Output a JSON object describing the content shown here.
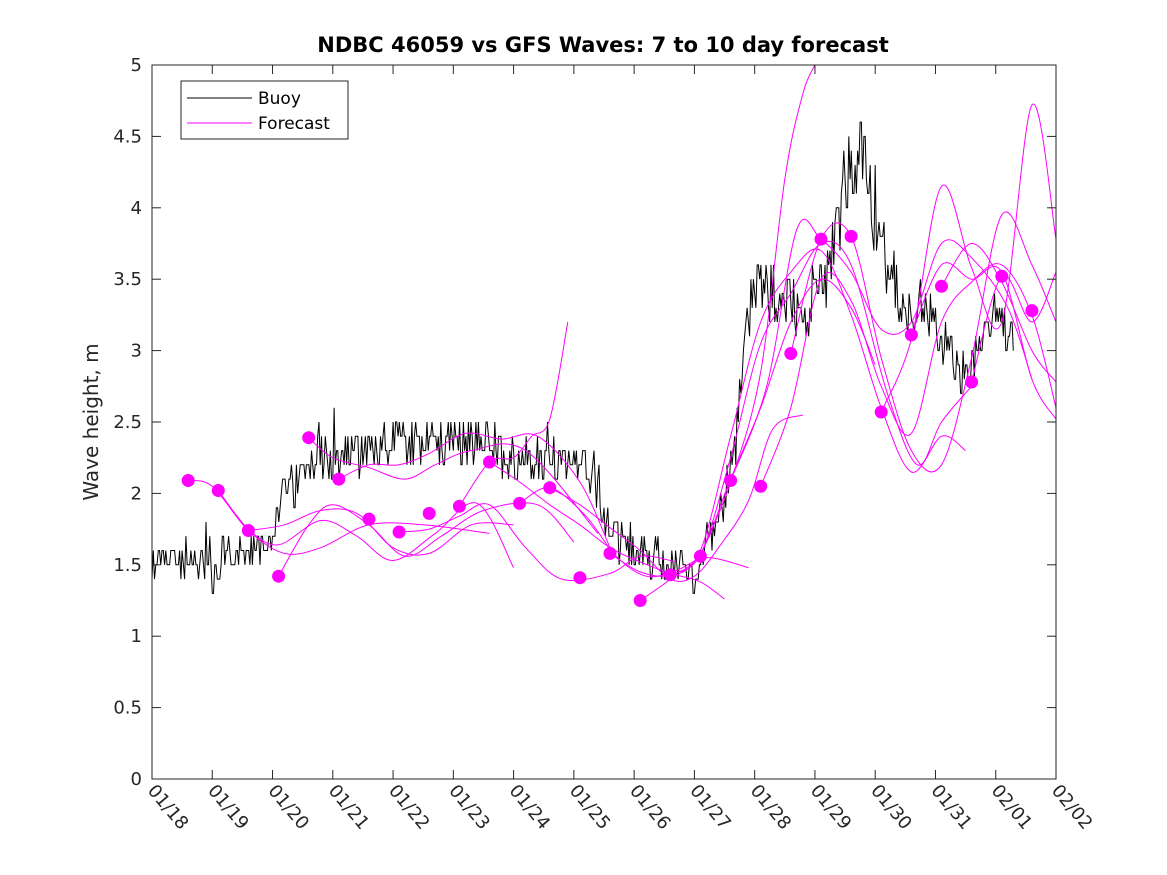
{
  "chart_data": {
    "type": "line",
    "title": "NDBC 46059 vs GFS Waves: 7 to 10 day forecast",
    "xlabel": "",
    "ylabel": "Wave height, m",
    "ylim": [
      0,
      5
    ],
    "xlim": [
      0,
      15
    ],
    "x_ticks": [
      {
        "x": 0,
        "label": "01/18"
      },
      {
        "x": 1,
        "label": "01/19"
      },
      {
        "x": 2,
        "label": "01/20"
      },
      {
        "x": 3,
        "label": "01/21"
      },
      {
        "x": 4,
        "label": "01/22"
      },
      {
        "x": 5,
        "label": "01/23"
      },
      {
        "x": 6,
        "label": "01/24"
      },
      {
        "x": 7,
        "label": "01/25"
      },
      {
        "x": 8,
        "label": "01/26"
      },
      {
        "x": 9,
        "label": "01/27"
      },
      {
        "x": 10,
        "label": "01/28"
      },
      {
        "x": 11,
        "label": "01/29"
      },
      {
        "x": 12,
        "label": "01/30"
      },
      {
        "x": 13,
        "label": "01/31"
      },
      {
        "x": 14,
        "label": "02/01"
      },
      {
        "x": 15,
        "label": "02/02"
      }
    ],
    "y_ticks": [
      {
        "y": 0,
        "label": "0"
      },
      {
        "y": 0.5,
        "label": "0.5"
      },
      {
        "y": 1,
        "label": "1"
      },
      {
        "y": 1.5,
        "label": "1.5"
      },
      {
        "y": 2,
        "label": "2"
      },
      {
        "y": 2.5,
        "label": "2.5"
      },
      {
        "y": 3,
        "label": "3"
      },
      {
        "y": 3.5,
        "label": "3.5"
      },
      {
        "y": 4,
        "label": "4"
      },
      {
        "y": 4.5,
        "label": "4.5"
      },
      {
        "y": 5,
        "label": "5"
      }
    ],
    "legend": {
      "position": "top-left",
      "entries": [
        {
          "label": "Buoy",
          "color": "#000000"
        },
        {
          "label": "Forecast",
          "color": "#ff00ff"
        }
      ]
    },
    "series": [
      {
        "name": "Buoy",
        "color": "#000000",
        "points": [
          [
            0,
            1.5
          ],
          [
            0.5,
            1.55
          ],
          [
            0.85,
            1.5
          ],
          [
            1.0,
            1.45
          ],
          [
            1.2,
            1.55
          ],
          [
            1.5,
            1.6
          ],
          [
            1.8,
            1.6
          ],
          [
            2.0,
            1.7
          ],
          [
            2.2,
            2.0
          ],
          [
            2.5,
            2.1
          ],
          [
            2.75,
            2.3
          ],
          [
            3.0,
            2.2
          ],
          [
            3.3,
            2.3
          ],
          [
            3.6,
            2.3
          ],
          [
            4.0,
            2.35
          ],
          [
            4.5,
            2.4
          ],
          [
            5.0,
            2.35
          ],
          [
            5.5,
            2.35
          ],
          [
            6.0,
            2.25
          ],
          [
            6.5,
            2.25
          ],
          [
            7.0,
            2.2
          ],
          [
            7.3,
            2.2
          ],
          [
            7.45,
            1.9
          ],
          [
            7.6,
            1.75
          ],
          [
            8.0,
            1.6
          ],
          [
            8.4,
            1.55
          ],
          [
            8.7,
            1.5
          ],
          [
            9.0,
            1.45
          ],
          [
            9.3,
            1.7
          ],
          [
            9.5,
            1.95
          ],
          [
            9.7,
            2.4
          ],
          [
            9.85,
            3.1
          ],
          [
            10.0,
            3.4
          ],
          [
            10.3,
            3.45
          ],
          [
            10.6,
            3.3
          ],
          [
            10.9,
            3.25
          ],
          [
            11.2,
            3.5
          ],
          [
            11.4,
            3.9
          ],
          [
            11.6,
            4.3
          ],
          [
            11.8,
            4.4
          ],
          [
            12.0,
            3.9
          ],
          [
            12.2,
            3.6
          ],
          [
            12.4,
            3.3
          ],
          [
            12.6,
            3.3
          ],
          [
            12.8,
            3.35
          ],
          [
            13.0,
            3.2
          ],
          [
            13.2,
            3.0
          ],
          [
            13.4,
            2.85
          ],
          [
            13.6,
            2.9
          ],
          [
            13.8,
            3.0
          ],
          [
            14.0,
            3.3
          ],
          [
            14.2,
            3.1
          ],
          [
            14.3,
            3.1
          ]
        ]
      }
    ],
    "forecast_runs": [
      [
        [
          0.6,
          2.09
        ],
        [
          1.0,
          2.05
        ],
        [
          1.6,
          1.74
        ],
        [
          2.2,
          1.58
        ],
        [
          2.8,
          1.62
        ],
        [
          3.6,
          1.78
        ],
        [
          4.5,
          1.78
        ],
        [
          5.6,
          1.72
        ]
      ],
      [
        [
          1.1,
          2.02
        ],
        [
          1.6,
          1.75
        ],
        [
          2.1,
          1.64
        ],
        [
          2.8,
          1.81
        ],
        [
          3.4,
          1.7
        ],
        [
          4.0,
          1.53
        ],
        [
          4.7,
          1.72
        ],
        [
          5.4,
          1.93
        ],
        [
          6.0,
          1.48
        ]
      ],
      [
        [
          1.6,
          1.74
        ],
        [
          2.2,
          1.78
        ],
        [
          2.8,
          1.88
        ],
        [
          3.4,
          1.86
        ],
        [
          4.0,
          1.62
        ],
        [
          4.6,
          1.58
        ],
        [
          5.3,
          1.78
        ],
        [
          6.0,
          1.78
        ]
      ],
      [
        [
          2.1,
          1.42
        ],
        [
          2.6,
          1.78
        ],
        [
          3.0,
          1.92
        ],
        [
          3.6,
          1.78
        ],
        [
          4.2,
          1.56
        ],
        [
          4.8,
          1.7
        ],
        [
          5.5,
          1.88
        ],
        [
          6.4,
          1.92
        ],
        [
          7.0,
          1.66
        ]
      ],
      [
        [
          2.6,
          2.39
        ],
        [
          3.0,
          2.25
        ],
        [
          3.6,
          2.18
        ],
        [
          4.2,
          2.1
        ],
        [
          4.7,
          2.2
        ],
        [
          5.3,
          2.3
        ],
        [
          6.2,
          2.3
        ],
        [
          7.4,
          1.72
        ]
      ],
      [
        [
          3.1,
          2.1
        ],
        [
          3.6,
          2.2
        ],
        [
          4.1,
          2.2
        ],
        [
          4.6,
          2.28
        ],
        [
          5.2,
          2.42
        ],
        [
          5.8,
          2.38
        ],
        [
          6.4,
          2.4
        ],
        [
          7.1,
          2.08
        ],
        [
          7.6,
          1.62
        ]
      ],
      [
        [
          4.1,
          1.73
        ],
        [
          4.6,
          1.75
        ],
        [
          5.1,
          1.84
        ],
        [
          5.6,
          1.92
        ],
        [
          6.2,
          1.62
        ],
        [
          6.8,
          1.4
        ],
        [
          7.6,
          1.44
        ],
        [
          8.1,
          1.56
        ],
        [
          8.7,
          1.52
        ]
      ],
      [
        [
          5.1,
          1.91
        ],
        [
          5.6,
          2.22
        ],
        [
          6.0,
          2.25
        ],
        [
          6.3,
          2.4
        ],
        [
          6.6,
          2.52
        ],
        [
          6.9,
          3.2
        ]
      ],
      [
        [
          5.6,
          2.22
        ],
        [
          6.1,
          2.08
        ],
        [
          6.6,
          1.92
        ],
        [
          7.1,
          1.78
        ],
        [
          7.6,
          1.62
        ],
        [
          8.1,
          1.52
        ],
        [
          8.6,
          1.44
        ],
        [
          9.1,
          1.38
        ],
        [
          9.5,
          1.26
        ]
      ],
      [
        [
          6.1,
          1.93
        ],
        [
          6.6,
          2.04
        ],
        [
          7.2,
          1.84
        ],
        [
          7.7,
          1.56
        ],
        [
          8.2,
          1.42
        ],
        [
          8.7,
          1.46
        ],
        [
          9.2,
          1.55
        ],
        [
          9.9,
          1.48
        ]
      ],
      [
        [
          6.6,
          2.04
        ],
        [
          7.1,
          1.92
        ],
        [
          7.6,
          1.76
        ],
        [
          8.1,
          1.6
        ],
        [
          8.6,
          1.4
        ],
        [
          9.0,
          1.42
        ],
        [
          9.4,
          1.62
        ],
        [
          9.9,
          1.95
        ],
        [
          10.3,
          2.45
        ],
        [
          10.8,
          2.55
        ]
      ],
      [
        [
          7.6,
          1.58
        ],
        [
          8.1,
          1.45
        ],
        [
          8.6,
          1.43
        ],
        [
          9.1,
          1.58
        ],
        [
          9.6,
          2.1
        ],
        [
          10.1,
          2.6
        ],
        [
          10.6,
          3.2
        ],
        [
          11.1,
          3.5
        ],
        [
          11.6,
          3.3
        ],
        [
          12.0,
          2.9
        ]
      ],
      [
        [
          8.1,
          1.25
        ],
        [
          8.6,
          1.4
        ],
        [
          9.1,
          1.6
        ],
        [
          9.6,
          2.4
        ],
        [
          10.1,
          3.2
        ],
        [
          10.6,
          3.55
        ],
        [
          11.1,
          3.7
        ],
        [
          11.6,
          3.25
        ],
        [
          12.1,
          2.6
        ],
        [
          12.6,
          2.15
        ],
        [
          13.1,
          2.4
        ],
        [
          13.5,
          2.3
        ]
      ],
      [
        [
          8.6,
          1.43
        ],
        [
          9.1,
          1.57
        ],
        [
          9.6,
          2.25
        ],
        [
          10.1,
          3.05
        ],
        [
          10.6,
          3.4
        ],
        [
          11.1,
          3.75
        ],
        [
          11.6,
          3.6
        ],
        [
          12.2,
          2.7
        ],
        [
          12.7,
          2.2
        ],
        [
          13.1,
          2.5
        ],
        [
          13.6,
          2.75
        ]
      ],
      [
        [
          9.1,
          1.56
        ],
        [
          9.6,
          2.08
        ],
        [
          10.1,
          2.85
        ],
        [
          10.5,
          4.2
        ],
        [
          10.8,
          4.8
        ],
        [
          11.0,
          5.0
        ]
      ],
      [
        [
          9.6,
          2.09
        ],
        [
          10.2,
          2.75
        ],
        [
          10.7,
          3.85
        ],
        [
          11.1,
          3.78
        ],
        [
          11.6,
          3.55
        ],
        [
          12.1,
          3.15
        ],
        [
          12.6,
          3.2
        ],
        [
          13.1,
          3.75
        ],
        [
          13.6,
          3.65
        ],
        [
          14.2,
          3.3
        ],
        [
          14.6,
          2.8
        ]
      ],
      [
        [
          10.1,
          2.05
        ],
        [
          10.6,
          2.6
        ],
        [
          11.1,
          3.5
        ],
        [
          11.6,
          3.35
        ],
        [
          12.1,
          2.75
        ],
        [
          12.6,
          2.42
        ],
        [
          13.1,
          3.2
        ],
        [
          13.6,
          3.48
        ],
        [
          14.1,
          3.6
        ],
        [
          14.6,
          3.25
        ],
        [
          15.0,
          2.6
        ]
      ],
      [
        [
          10.6,
          2.98
        ],
        [
          11.1,
          3.78
        ],
        [
          11.6,
          3.8
        ],
        [
          12.1,
          2.95
        ],
        [
          12.6,
          2.3
        ],
        [
          13.1,
          2.2
        ],
        [
          13.6,
          2.95
        ],
        [
          14.1,
          3.95
        ],
        [
          14.6,
          3.6
        ],
        [
          15.0,
          3.2
        ]
      ],
      [
        [
          12.1,
          2.57
        ],
        [
          12.6,
          3.08
        ],
        [
          13.1,
          4.15
        ],
        [
          13.6,
          3.58
        ],
        [
          14.1,
          3.2
        ],
        [
          14.6,
          4.72
        ],
        [
          15.0,
          3.78
        ]
      ],
      [
        [
          12.6,
          3.11
        ],
        [
          13.1,
          3.6
        ],
        [
          13.6,
          3.5
        ],
        [
          14.1,
          3.55
        ],
        [
          14.6,
          2.8
        ],
        [
          15.0,
          2.52
        ]
      ],
      [
        [
          13.1,
          3.45
        ],
        [
          13.6,
          3.75
        ],
        [
          14.1,
          3.48
        ],
        [
          14.6,
          3.0
        ],
        [
          15.0,
          2.78
        ]
      ],
      [
        [
          13.6,
          2.78
        ],
        [
          14.1,
          3.52
        ],
        [
          14.6,
          3.2
        ],
        [
          15.0,
          3.55
        ]
      ]
    ],
    "forecast_points": [
      [
        0.6,
        2.09
      ],
      [
        1.1,
        2.02
      ],
      [
        1.6,
        1.74
      ],
      [
        2.1,
        1.42
      ],
      [
        2.6,
        2.39
      ],
      [
        3.1,
        2.1
      ],
      [
        3.6,
        1.82
      ],
      [
        4.1,
        1.73
      ],
      [
        4.6,
        1.86
      ],
      [
        5.1,
        1.91
      ],
      [
        5.6,
        2.22
      ],
      [
        6.1,
        1.93
      ],
      [
        6.6,
        2.04
      ],
      [
        7.1,
        1.41
      ],
      [
        7.6,
        1.58
      ],
      [
        8.1,
        1.25
      ],
      [
        8.6,
        1.43
      ],
      [
        9.1,
        1.56
      ],
      [
        9.6,
        2.09
      ],
      [
        10.1,
        2.05
      ],
      [
        10.6,
        2.98
      ],
      [
        11.1,
        3.78
      ],
      [
        11.6,
        3.8
      ],
      [
        12.1,
        2.57
      ],
      [
        12.6,
        3.11
      ],
      [
        13.1,
        3.45
      ],
      [
        13.6,
        2.78
      ],
      [
        14.1,
        3.52
      ],
      [
        14.6,
        3.28
      ]
    ]
  }
}
